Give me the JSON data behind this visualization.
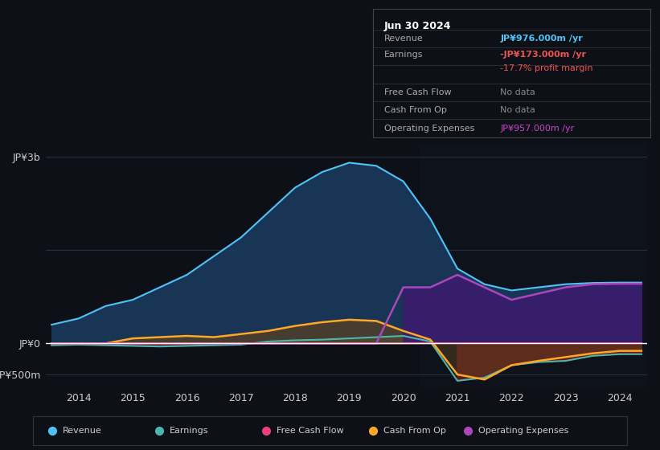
{
  "bg_color": "#0d1117",
  "plot_bg_color": "#0d1117",
  "title_box": {
    "date": "Jun 30 2024",
    "rows": [
      {
        "label": "Revenue",
        "value": "JP¥976.000m /yr",
        "value_color": "#4fc3f7"
      },
      {
        "label": "Earnings",
        "value": "-JP¥173.000m /yr",
        "value_color": "#ef5350"
      },
      {
        "label": "",
        "value": "-17.7% profit margin",
        "value_color": "#ef5350"
      },
      {
        "label": "Free Cash Flow",
        "value": "No data",
        "value_color": "#888888"
      },
      {
        "label": "Cash From Op",
        "value": "No data",
        "value_color": "#888888"
      },
      {
        "label": "Operating Expenses",
        "value": "JP¥957.000m /yr",
        "value_color": "#cc44cc"
      }
    ]
  },
  "yticks_labels": [
    "JP¥3b",
    "JP¥0",
    "-JP¥500m"
  ],
  "yticks_vals": [
    3000,
    0,
    -500
  ],
  "xticks": [
    2014,
    2015,
    2016,
    2017,
    2018,
    2019,
    2020,
    2021,
    2022,
    2023,
    2024
  ],
  "years": [
    2013.5,
    2014.0,
    2014.5,
    2015.0,
    2015.5,
    2016.0,
    2016.5,
    2017.0,
    2017.5,
    2018.0,
    2018.5,
    2019.0,
    2019.5,
    2020.0,
    2020.5,
    2021.0,
    2021.5,
    2022.0,
    2022.5,
    2023.0,
    2023.5,
    2024.0,
    2024.4
  ],
  "revenue": [
    300,
    400,
    600,
    700,
    900,
    1100,
    1400,
    1700,
    2100,
    2500,
    2750,
    2900,
    2850,
    2600,
    2000,
    1200,
    950,
    850,
    900,
    950,
    970,
    976,
    976
  ],
  "earnings": [
    -30,
    -20,
    -30,
    -40,
    -50,
    -40,
    -30,
    -20,
    30,
    50,
    60,
    80,
    100,
    120,
    30,
    -600,
    -550,
    -350,
    -300,
    -280,
    -200,
    -173,
    -173
  ],
  "free_cash": [
    0,
    0,
    0,
    0,
    0,
    0,
    0,
    0,
    0,
    0,
    0,
    0,
    0,
    0,
    0,
    0,
    0,
    0,
    0,
    0,
    0,
    0,
    0
  ],
  "cash_from_op": [
    0,
    0,
    0,
    80,
    100,
    120,
    100,
    150,
    200,
    280,
    340,
    380,
    360,
    200,
    60,
    -500,
    -580,
    -350,
    -280,
    -220,
    -160,
    -120,
    -120
  ],
  "op_expenses": [
    0,
    0,
    0,
    0,
    0,
    0,
    0,
    0,
    0,
    0,
    0,
    0,
    0,
    900,
    900,
    1100,
    900,
    700,
    800,
    900,
    950,
    957,
    957
  ],
  "legend": [
    {
      "label": "Revenue",
      "color": "#4fc3f7"
    },
    {
      "label": "Earnings",
      "color": "#4db6ac"
    },
    {
      "label": "Free Cash Flow",
      "color": "#ec407a"
    },
    {
      "label": "Cash From Op",
      "color": "#ffa726"
    },
    {
      "label": "Operating Expenses",
      "color": "#ab47bc"
    }
  ],
  "grid_color": "#2a3040",
  "zero_line_color": "#ffffff",
  "shade_right_x": 2020.3
}
